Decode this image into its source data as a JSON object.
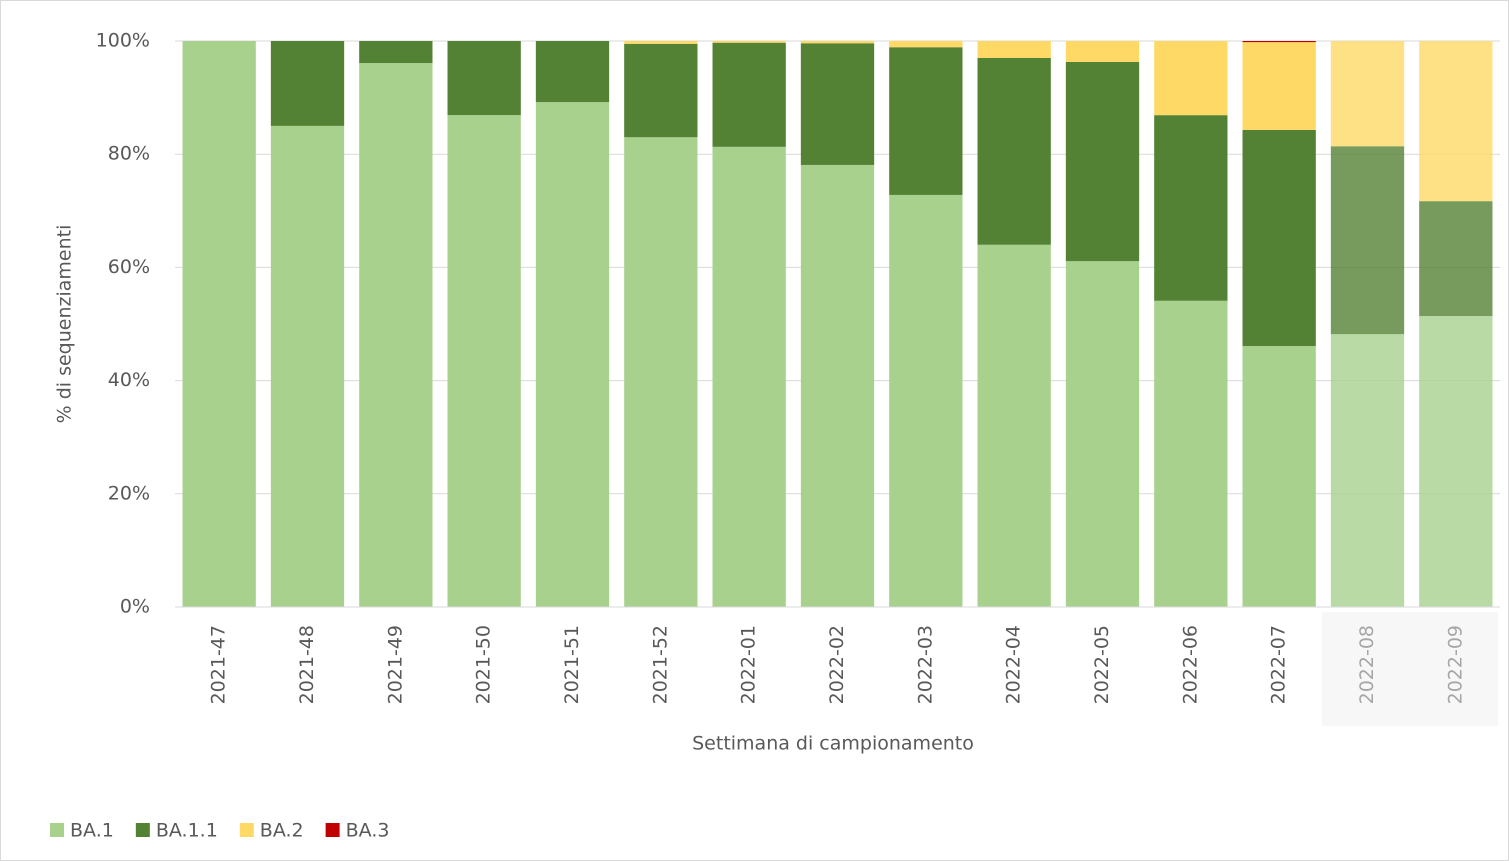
{
  "chart_data": {
    "type": "stacked_bar",
    "x_label": "Settimana di campionamento",
    "y_label": "% di sequenziamenti",
    "categories": [
      "2021-47",
      "2021-48",
      "2021-49",
      "2021-50",
      "2021-51",
      "2021-52",
      "2022-01",
      "2022-02",
      "2022-03",
      "2022-04",
      "2022-05",
      "2022-06",
      "2022-07",
      "2022-08",
      "2022-09"
    ],
    "series": [
      {
        "name": "BA.1",
        "color": "#a9d18e",
        "values": [
          100,
          85.0,
          96.1,
          86.9,
          89.2,
          83.0,
          81.3,
          78.1,
          72.8,
          64.0,
          61.1,
          54.1,
          46.1,
          48.2,
          51.4
        ]
      },
      {
        "name": "BA.1.1",
        "color": "#548235",
        "values": [
          0,
          15.0,
          3.9,
          13.1,
          10.8,
          16.5,
          18.4,
          21.5,
          26.1,
          33.0,
          35.2,
          32.8,
          38.2,
          33.2,
          20.3
        ]
      },
      {
        "name": "BA.2",
        "color": "#ffd966",
        "values": [
          0,
          0,
          0,
          0,
          0,
          0.5,
          0.3,
          0.4,
          1.1,
          3.0,
          3.7,
          13.1,
          15.5,
          18.6,
          28.3
        ]
      },
      {
        "name": "BA.3",
        "color": "#c00000",
        "values": [
          0,
          0,
          0,
          0,
          0,
          0,
          0,
          0,
          0,
          0,
          0,
          0,
          0.2,
          0,
          0
        ]
      }
    ],
    "ylim": [
      0,
      100
    ],
    "yticks": [
      {
        "value": 0,
        "label": "0%"
      },
      {
        "value": 20,
        "label": "20%"
      },
      {
        "value": 40,
        "label": "40%"
      },
      {
        "value": 60,
        "label": "60%"
      },
      {
        "value": 80,
        "label": "80%"
      },
      {
        "value": 100,
        "label": "100%"
      }
    ],
    "grid": true,
    "legend": "bottom-left"
  }
}
